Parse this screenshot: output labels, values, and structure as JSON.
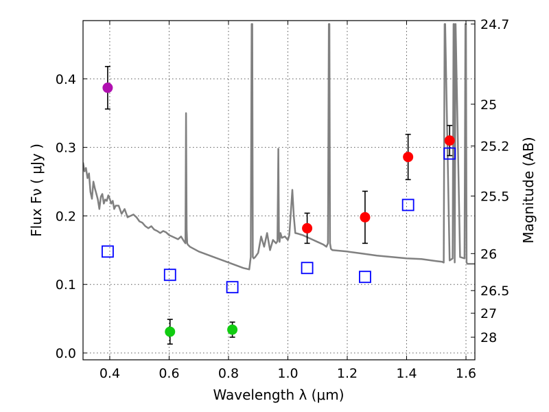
{
  "chart_data": {
    "type": "scatter",
    "xlabel": "Wavelength  λ (μm)",
    "ylabel": "Flux  Fν  ( μJy )",
    "ylabel_right": "Magnitude (AB)",
    "xlim": [
      0.31,
      1.63
    ],
    "ylim": [
      -0.01,
      0.485
    ],
    "x_ticks": [
      0.4,
      0.6,
      0.8,
      1.0,
      1.2,
      1.4,
      1.6
    ],
    "x_tick_labels": [
      "0.4",
      "0.6",
      "0.8",
      "1.0",
      "1.2",
      "1.4",
      "1.6"
    ],
    "y_ticks": [
      0.0,
      0.1,
      0.2,
      0.3,
      0.4
    ],
    "y_tick_labels": [
      "0.0",
      "0.1",
      "0.2",
      "0.3",
      "0.4"
    ],
    "right_ticks": [
      {
        "label": "24.7",
        "flux": 0.48
      },
      {
        "label": "25",
        "flux": 0.363
      },
      {
        "label": "25.2",
        "flux": 0.302
      },
      {
        "label": "25.5",
        "flux": 0.229
      },
      {
        "label": "26",
        "flux": 0.145
      },
      {
        "label": "26.5",
        "flux": 0.091
      },
      {
        "label": "27",
        "flux": 0.058
      },
      {
        "label": "28",
        "flux": 0.023
      }
    ],
    "colors": {
      "model": "#808080",
      "uv_point": "#b010b0",
      "optical_points": "#11cc11",
      "nir_points": "#ff0000",
      "model_photometry": "#0000ff",
      "errorbar": "#000000"
    },
    "series": [
      {
        "name": "observed-uv",
        "marker": "circle",
        "color_key": "uv_point",
        "points": [
          {
            "x": 0.393,
            "y": 0.387,
            "err": 0.031
          }
        ]
      },
      {
        "name": "observed-optical",
        "marker": "circle",
        "color_key": "optical_points",
        "points": [
          {
            "x": 0.603,
            "y": 0.031,
            "err": 0.018
          },
          {
            "x": 0.813,
            "y": 0.034,
            "err": 0.011
          }
        ]
      },
      {
        "name": "observed-nir",
        "marker": "circle",
        "color_key": "nir_points",
        "points": [
          {
            "x": 1.065,
            "y": 0.182,
            "err": 0.022
          },
          {
            "x": 1.26,
            "y": 0.198,
            "err": 0.038
          },
          {
            "x": 1.405,
            "y": 0.286,
            "err": 0.033
          },
          {
            "x": 1.545,
            "y": 0.31,
            "err": 0.022
          }
        ]
      },
      {
        "name": "model-photometry",
        "marker": "square",
        "color_key": "model_photometry",
        "points": [
          {
            "x": 0.393,
            "y": 0.148
          },
          {
            "x": 0.603,
            "y": 0.114
          },
          {
            "x": 0.813,
            "y": 0.096
          },
          {
            "x": 1.065,
            "y": 0.124
          },
          {
            "x": 1.26,
            "y": 0.111
          },
          {
            "x": 1.405,
            "y": 0.216
          },
          {
            "x": 1.545,
            "y": 0.291
          }
        ]
      }
    ],
    "model_spectrum": {
      "name": "sed-model",
      "x": [
        0.31,
        0.315,
        0.32,
        0.325,
        0.33,
        0.335,
        0.34,
        0.345,
        0.35,
        0.355,
        0.36,
        0.365,
        0.37,
        0.375,
        0.38,
        0.385,
        0.39,
        0.395,
        0.4,
        0.405,
        0.41,
        0.415,
        0.42,
        0.43,
        0.44,
        0.45,
        0.46,
        0.47,
        0.48,
        0.49,
        0.5,
        0.51,
        0.52,
        0.53,
        0.54,
        0.55,
        0.56,
        0.57,
        0.58,
        0.59,
        0.6,
        0.61,
        0.62,
        0.63,
        0.64,
        0.65,
        0.655,
        0.657,
        0.659,
        0.661,
        0.663,
        0.67,
        0.7,
        0.75,
        0.8,
        0.85,
        0.87,
        0.875,
        0.878,
        0.88,
        0.882,
        0.885,
        0.89,
        0.9,
        0.91,
        0.92,
        0.93,
        0.94,
        0.95,
        0.96,
        0.965,
        0.968,
        0.97,
        0.972,
        0.975,
        0.98,
        0.99,
        1.0,
        1.005,
        1.015,
        1.02,
        1.025,
        1.035,
        1.05,
        1.08,
        1.1,
        1.12,
        1.13,
        1.135,
        1.138,
        1.14,
        1.142,
        1.145,
        1.15,
        1.2,
        1.25,
        1.3,
        1.35,
        1.4,
        1.45,
        1.5,
        1.52,
        1.525,
        1.528,
        1.53,
        1.545,
        1.555,
        1.558,
        1.56,
        1.562,
        1.565,
        1.58,
        1.595,
        1.598,
        1.6,
        1.602,
        1.605,
        1.63
      ],
      "y": [
        0.278,
        0.265,
        0.27,
        0.255,
        0.262,
        0.235,
        0.225,
        0.25,
        0.24,
        0.232,
        0.224,
        0.21,
        0.228,
        0.232,
        0.218,
        0.224,
        0.222,
        0.23,
        0.225,
        0.218,
        0.222,
        0.21,
        0.215,
        0.215,
        0.203,
        0.21,
        0.198,
        0.2,
        0.202,
        0.198,
        0.192,
        0.19,
        0.185,
        0.182,
        0.185,
        0.18,
        0.178,
        0.175,
        0.178,
        0.176,
        0.172,
        0.17,
        0.168,
        0.166,
        0.17,
        0.163,
        0.16,
        0.35,
        0.18,
        0.16,
        0.158,
        0.155,
        0.148,
        0.14,
        0.132,
        0.124,
        0.122,
        0.14,
        0.48,
        0.48,
        0.14,
        0.138,
        0.14,
        0.146,
        0.17,
        0.155,
        0.175,
        0.15,
        0.165,
        0.16,
        0.163,
        0.298,
        0.17,
        0.162,
        0.175,
        0.168,
        0.17,
        0.165,
        0.172,
        0.238,
        0.2,
        0.175,
        0.174,
        0.172,
        0.166,
        0.162,
        0.158,
        0.155,
        0.16,
        0.48,
        0.48,
        0.16,
        0.152,
        0.15,
        0.148,
        0.145,
        0.142,
        0.14,
        0.138,
        0.137,
        0.134,
        0.133,
        0.132,
        0.48,
        0.48,
        0.135,
        0.138,
        0.48,
        0.48,
        0.132,
        0.48,
        0.14,
        0.138,
        0.48,
        0.48,
        0.132,
        0.13,
        0.13
      ]
    }
  }
}
